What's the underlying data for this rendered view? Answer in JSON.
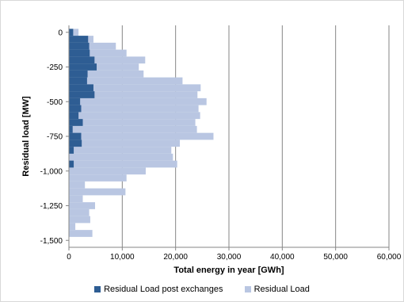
{
  "chart_data": {
    "type": "bar",
    "orientation": "horizontal",
    "xlabel": "Total energy in year [GWh]",
    "ylabel": "Residual load [MW]",
    "xlim": [
      0,
      60000
    ],
    "ylim": [
      -1500,
      0
    ],
    "x_ticks": [
      "0",
      "10,000",
      "20,000",
      "30,000",
      "40,000",
      "50,000",
      "60,000"
    ],
    "y_ticks": [
      "0",
      "-250",
      "-500",
      "-750",
      "-1,000",
      "-1,250",
      "-1,500"
    ],
    "x_tick_values": [
      0,
      10000,
      20000,
      30000,
      40000,
      50000,
      60000
    ],
    "y_tick_values": [
      0,
      -250,
      -500,
      -750,
      -1000,
      -1250,
      -1500
    ],
    "vertical_gridlines": true,
    "bin_width": 50,
    "legend_position": "bottom",
    "bins": [
      0,
      -50,
      -100,
      -150,
      -200,
      -250,
      -300,
      -350,
      -400,
      -450,
      -500,
      -550,
      -600,
      -650,
      -700,
      -750,
      -800,
      -850,
      -900,
      -950,
      -1000,
      -1050,
      -1100,
      -1150,
      -1200,
      -1250,
      -1300,
      -1350,
      -1400,
      -1450
    ],
    "series": [
      {
        "name": "Residual Load post exchanges",
        "color": "#2e5d93",
        "values": [
          800,
          3600,
          3800,
          3900,
          4800,
          5200,
          3500,
          3400,
          4600,
          4800,
          2100,
          2300,
          1800,
          2600,
          700,
          2300,
          2400,
          900,
          0,
          900,
          0,
          0,
          0,
          0,
          0,
          0,
          0,
          0,
          0,
          0
        ]
      },
      {
        "name": "Residual Load",
        "color": "#b9c6e2",
        "values": [
          1800,
          4600,
          8800,
          10800,
          14300,
          13100,
          14000,
          21300,
          24700,
          24100,
          25800,
          24300,
          24600,
          23700,
          24000,
          27100,
          20800,
          19200,
          19500,
          20300,
          14400,
          10800,
          3000,
          10600,
          2600,
          4900,
          3800,
          4000,
          1200,
          4400
        ]
      }
    ]
  }
}
